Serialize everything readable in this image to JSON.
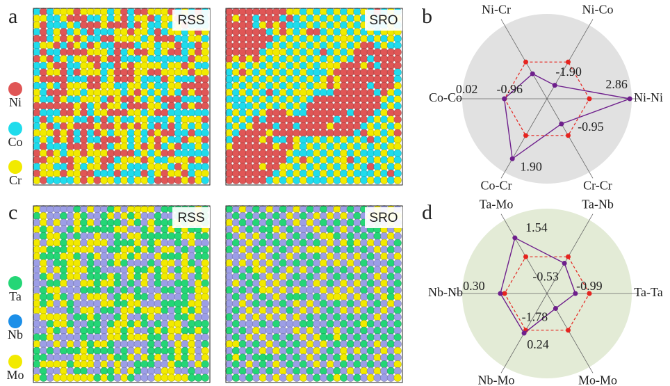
{
  "panel_labels": [
    "a",
    "b",
    "c",
    "d"
  ],
  "structure_tags": [
    "RSS",
    "SRO",
    "RSS",
    "SRO"
  ],
  "legends": [
    {
      "elements": [
        "Ni",
        "Co",
        "Cr"
      ],
      "colors": [
        "#e05656",
        "#1fdcec",
        "#f2ea00"
      ]
    },
    {
      "elements": [
        "Ta",
        "Nb",
        "Mo"
      ],
      "colors": [
        "#24d676",
        "#1c8fe8",
        "#f2ea00"
      ]
    }
  ],
  "chart_data": [
    {
      "type": "radar",
      "categories": [
        "Ni-Ni",
        "Ni-Co",
        "Ni-Cr",
        "Co-Co",
        "Co-Cr",
        "Cr-Cr"
      ],
      "values": [
        2.86,
        -1.9,
        -0.96,
        0.02,
        1.9,
        -0.95
      ],
      "value_labels": [
        "2.86",
        "-1.90",
        "-0.96",
        "0.02",
        "1.90",
        "-0.95"
      ],
      "reference_values": [
        0,
        0,
        0,
        0,
        0,
        0
      ],
      "rlim": [
        -3,
        3
      ],
      "color": "#6e1f8c",
      "reference_color": "#e5241f",
      "background": "#e1e1e1"
    },
    {
      "type": "radar",
      "categories": [
        "Ta-Ta",
        "Ta-Nb",
        "Ta-Mo",
        "Nb-Nb",
        "Nb-Mo",
        "Mo-Mo"
      ],
      "values": [
        -0.99,
        -0.53,
        1.54,
        0.3,
        0.24,
        -1.78
      ],
      "value_labels": [
        "-0.99",
        "-0.53",
        "1.54",
        "0.30",
        "0.24",
        "-1.78"
      ],
      "reference_values": [
        0,
        0,
        0,
        0,
        0,
        0
      ],
      "rlim": [
        -3,
        3
      ],
      "color": "#6e1f8c",
      "reference_color": "#e5241f",
      "background": "#e3ebd6"
    }
  ]
}
